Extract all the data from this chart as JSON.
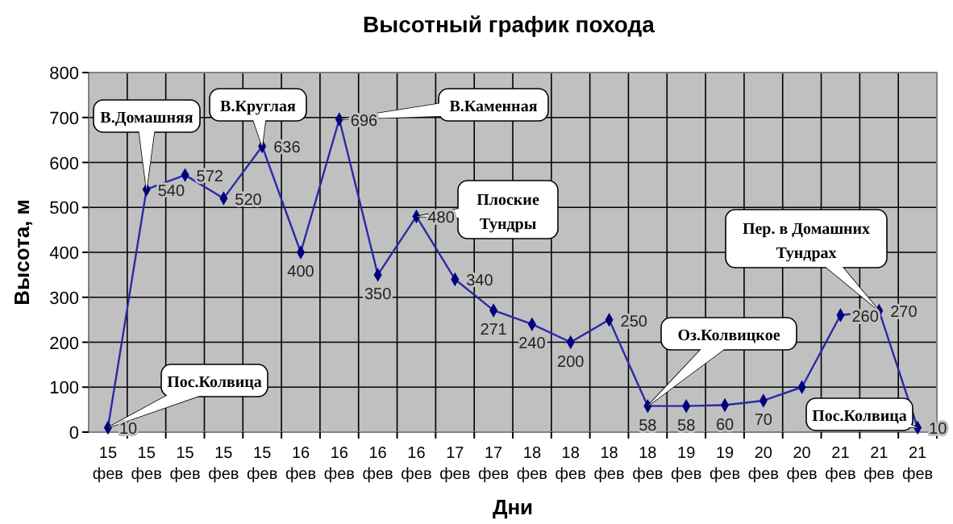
{
  "chart_data": {
    "type": "line",
    "title": "Высотный график похода",
    "xlabel": "Дни",
    "ylabel": "Высота, м",
    "categories": [
      "15 фев",
      "15 фев",
      "15 фев",
      "15 фев",
      "15 фев",
      "16 фев",
      "16 фев",
      "16 фев",
      "16 фев",
      "17 фев",
      "17 фев",
      "18 фев",
      "18 фев",
      "18 фев",
      "18 фев",
      "19 фев",
      "19 фев",
      "20 фев",
      "20 фев",
      "21 фев",
      "21 фев",
      "21 фев"
    ],
    "series": [
      {
        "color": "#2a2aa8",
        "values": [
          10,
          540,
          572,
          520,
          636,
          400,
          696,
          350,
          480,
          340,
          271,
          240,
          200,
          250,
          58,
          58,
          60,
          70,
          100,
          260,
          270,
          10
        ],
        "value_labels": [
          "10",
          "540",
          "572",
          "520",
          "636",
          "400",
          "696",
          "350",
          "480",
          "340",
          "271",
          "240",
          "200",
          "250",
          "58",
          "58",
          "60",
          "70",
          null,
          "260",
          "270",
          "10"
        ]
      }
    ],
    "ylim": [
      0,
      800
    ],
    "yticks": [
      0,
      100,
      200,
      300,
      400,
      500,
      600,
      700,
      800
    ],
    "grid": true,
    "marker": "diamond",
    "line_style": "solid",
    "annotations": [
      "В.Домашняя",
      "В.Круглая",
      "В.Каменная",
      "Плоские Тундры",
      "Оз.Колвицкое",
      "Пер. в Домашних Тундрах",
      "Пос.Колвица",
      "Пос.Колвица"
    ]
  }
}
